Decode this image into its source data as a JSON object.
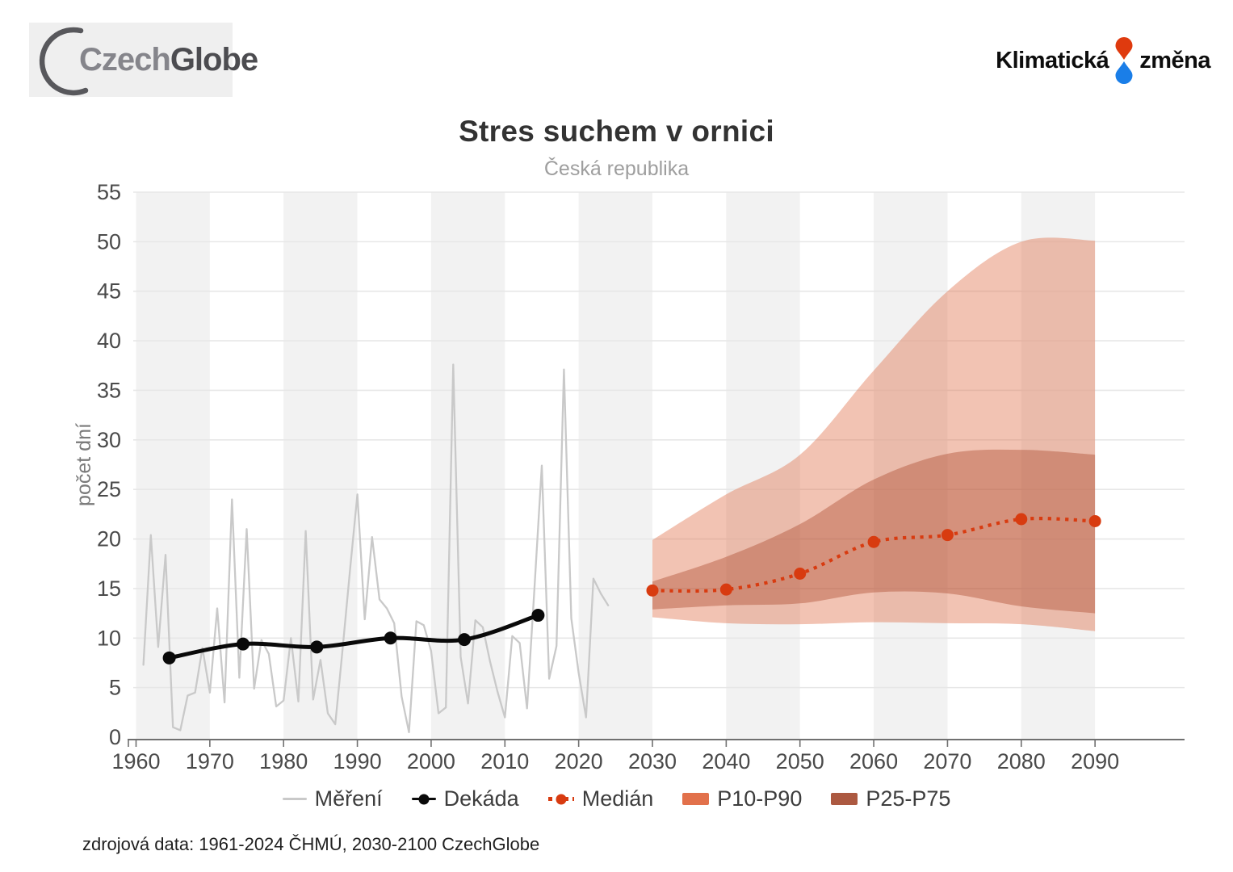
{
  "header": {
    "czechglobe_part1": "Czech",
    "czechglobe_part2": "Globe",
    "klimaticka": "Klimatická",
    "zmena": "změna"
  },
  "title": "Stres suchem v ornici",
  "subtitle": "Česká republika",
  "source_note": "zdrojová data: 1961-2024 ČHMÚ, 2030-2100 CzechGlobe",
  "colors": {
    "measurement_gray": "#c9c9c9",
    "decade_black": "#0a0a0a",
    "median_red": "#d83b10",
    "band_p10p90_fill": "rgba(225,111,74,0.42)",
    "band_p25p75_fill": "rgba(166,62,34,0.38)",
    "legend_p10p90": "#e2714b",
    "legend_p25p75": "#ac5941",
    "decade_stripe": "#f2f2f2",
    "gridline": "#e7e7e7",
    "axis": "#707070",
    "tick_text": "#4a4a4a",
    "y_axis_title": "#7a7a7a",
    "kz_red": "#df3a0e",
    "kz_blue": "#1a7ee8",
    "crescent": "#58585c"
  },
  "chart_data": {
    "type": "line",
    "title": "Stres suchem v ornici",
    "subtitle": "Česká republika",
    "xlabel": "",
    "ylabel": "počet dní",
    "ylim": [
      0,
      55
    ],
    "yticks": [
      0,
      5,
      10,
      15,
      20,
      25,
      30,
      35,
      40,
      45,
      50,
      55
    ],
    "xticks": [
      1960,
      1970,
      1980,
      1990,
      2000,
      2010,
      2020,
      2030,
      2040,
      2050,
      2060,
      2070,
      2080,
      2090
    ],
    "x_axis_range": [
      1959,
      2102
    ],
    "grid": "horizontal",
    "decade_stripes_start_years": [
      1960,
      1980,
      2000,
      2020,
      2040,
      2060,
      2080
    ],
    "legend_position": "bottom",
    "legend": [
      {
        "label": "Měření",
        "swatch": "line",
        "color": "#c9c9c9"
      },
      {
        "label": "Dekáda",
        "swatch": "line-dot",
        "color": "#0a0a0a"
      },
      {
        "label": "Medián",
        "swatch": "dotted-dot",
        "color": "#d83b10"
      },
      {
        "label": "P10-P90",
        "swatch": "rect",
        "color": "#e2714b"
      },
      {
        "label": "P25-P75",
        "swatch": "rect",
        "color": "#ac5941"
      }
    ],
    "series": [
      {
        "name": "Měření",
        "style": "thin-line",
        "x_start": 1961,
        "x_step": 1,
        "values": [
          7.3,
          20.4,
          9.1,
          18.4,
          1.0,
          0.7,
          4.2,
          4.5,
          9.0,
          4.5,
          13.0,
          3.5,
          24.0,
          6.0,
          21.0,
          4.9,
          9.8,
          8.4,
          3.1,
          3.7,
          10.0,
          3.6,
          20.8,
          3.8,
          7.8,
          2.4,
          1.3,
          8.9,
          16.8,
          24.5,
          11.9,
          20.2,
          13.9,
          13.0,
          11.5,
          4.1,
          0.5,
          11.7,
          11.3,
          8.7,
          2.4,
          3.0,
          37.6,
          8.1,
          3.4,
          11.8,
          11.1,
          7.6,
          4.6,
          2.0,
          10.2,
          9.5,
          2.9,
          14.9,
          27.4,
          5.9,
          9.2,
          37.1,
          12.0,
          6.5,
          2.0,
          16.0,
          14.5,
          13.3
        ]
      },
      {
        "name": "Dekáda",
        "style": "smooth-line-markers",
        "x": [
          1964.5,
          1974.5,
          1984.5,
          1994.5,
          2004.5,
          2014.5
        ],
        "values": [
          8.0,
          9.4,
          9.1,
          10.0,
          9.85,
          12.3
        ]
      },
      {
        "name": "Medián",
        "style": "dotted-line-markers",
        "x": [
          2030,
          2040,
          2050,
          2060,
          2070,
          2080,
          2090
        ],
        "values": [
          14.8,
          14.9,
          16.5,
          19.7,
          20.4,
          22.0,
          21.8
        ]
      },
      {
        "name": "P10-P90",
        "style": "band",
        "x": [
          2030,
          2040,
          2050,
          2060,
          2070,
          2080,
          2090
        ],
        "upper": [
          19.9,
          24.5,
          28.5,
          37.0,
          45.0,
          50.0,
          50.1
        ],
        "lower": [
          12.1,
          11.5,
          11.4,
          11.6,
          11.5,
          11.4,
          10.7
        ]
      },
      {
        "name": "P25-P75",
        "style": "band",
        "x": [
          2030,
          2040,
          2050,
          2060,
          2070,
          2080,
          2090
        ],
        "upper": [
          15.7,
          18.2,
          21.5,
          26.0,
          28.6,
          29.0,
          28.5
        ],
        "lower": [
          12.9,
          13.3,
          13.5,
          14.6,
          14.5,
          13.2,
          12.5
        ]
      }
    ]
  }
}
